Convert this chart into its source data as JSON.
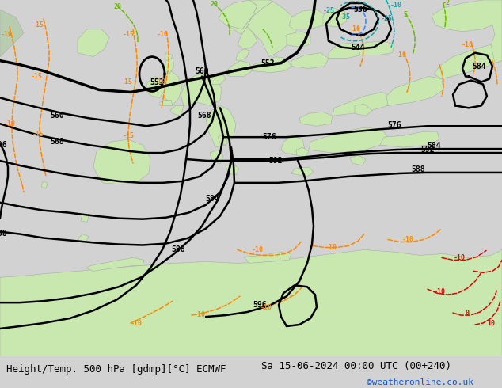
{
  "title_left": "Height/Temp. 500 hPa [gdmp][°C] ECMWF",
  "title_right": "Sa 15-06-2024 00:00 UTC (00+240)",
  "credit": "©weatheronline.co.uk",
  "bg_color": "#d2d2d2",
  "land_color": "#c8e8b0",
  "land_edge": "#aaaaaa",
  "sea_color": "#d2d2d2",
  "contour_color": "#000000",
  "orange": "#ff8800",
  "green_t": "#66bb00",
  "cyan_t": "#00aaaa",
  "blue_t": "#4488ff",
  "red_t": "#dd0000",
  "label_fs": 7,
  "title_fs": 9,
  "credit_fs": 8,
  "figsize": [
    6.34,
    4.9
  ],
  "dpi": 100
}
